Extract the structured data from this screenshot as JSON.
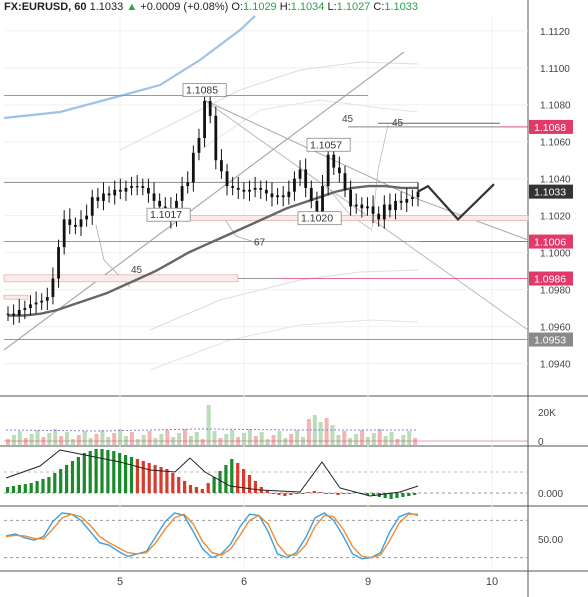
{
  "header": {
    "symbol": "FX:EURUSD, 60",
    "last": "1.1033",
    "change_arrow": "▲",
    "change": "+0.0009 (+0.08%)",
    "open_label": "O:",
    "open": "1.1029",
    "high_label": "H:",
    "high": "1.1034",
    "low_label": "L:",
    "low": "1.1027",
    "close_label": "C:",
    "close": "1.1033"
  },
  "colors": {
    "candle": "#111111",
    "ma": "#666666",
    "bollinger_upper_blue": "#9fc2e6",
    "envelope": "#d6d6d6",
    "trendline": "#aaaaaa",
    "level_line": "#888888",
    "red_badge": "#e0396a",
    "gray_badge": "#8a8a8a",
    "last_badge": "#333333",
    "volume_up": "#b9dcb9",
    "volume_down": "#f1b5b5",
    "macd_up": "#1a8a2a",
    "macd_down": "#d93a2b",
    "stoch_k": "#3aa0e0",
    "stoch_d": "#f08a30"
  },
  "chart_data": [
    {
      "type": "candlestick",
      "panel": "price",
      "y_axis_ticks": [
        "1.1120",
        "1.1100",
        "1.1080",
        "1.1060",
        "1.1040",
        "1.1020",
        "1.1000",
        "1.0980",
        "1.0960",
        "1.0940"
      ],
      "ylim": [
        1.0923,
        1.1128
      ],
      "x_axis_ticks": [
        "5",
        "6",
        "9",
        "10"
      ],
      "annotations": [
        "1.1085",
        "1.1057",
        "1.1017",
        "1.1020",
        "45",
        "45",
        "45",
        "67"
      ],
      "price_badges": [
        {
          "label": "1.1068",
          "value": 1.1068,
          "color": "red"
        },
        {
          "label": "1.1033",
          "value": 1.1033,
          "color": "dark"
        },
        {
          "label": "1.1006",
          "value": 1.1006,
          "color": "red"
        },
        {
          "label": "1.0986",
          "value": 1.0986,
          "color": "red"
        },
        {
          "label": "1.0953",
          "value": 1.0953,
          "color": "gray"
        }
      ],
      "closes": [
        1.0967,
        1.0966,
        1.0969,
        1.097,
        1.0972,
        1.0973,
        1.0974,
        1.0976,
        1.0986,
        1.1003,
        1.1018,
        1.1015,
        1.1014,
        1.1018,
        1.102,
        1.103,
        1.1028,
        1.1032,
        1.1031,
        1.1034,
        1.1033,
        1.1035,
        1.1036,
        1.1036,
        1.1035,
        1.1032,
        1.1028,
        1.1025,
        1.1024,
        1.1018,
        1.1028,
        1.1036,
        1.1038,
        1.1054,
        1.1062,
        1.1082,
        1.1074,
        1.105,
        1.1044,
        1.1036,
        1.1035,
        1.1034,
        1.1033,
        1.1034,
        1.1035,
        1.1034,
        1.1032,
        1.103,
        1.1031,
        1.103,
        1.1033,
        1.104,
        1.1045,
        1.1035,
        1.1028,
        1.102,
        1.1036,
        1.1053,
        1.1046,
        1.1043,
        1.1034,
        1.1025,
        1.1026,
        1.1024,
        1.1025,
        1.1021,
        1.1018,
        1.1026,
        1.1023,
        1.1028,
        1.1027,
        1.1029,
        1.103,
        1.1033
      ],
      "moving_average": [
        1.0966,
        1.0966,
        1.0967,
        1.0969,
        1.0972,
        1.0975,
        1.0978,
        1.0982,
        1.0986,
        1.099,
        1.0995,
        1.1,
        1.1004,
        1.1008,
        1.1012,
        1.1016,
        1.102,
        1.1024,
        1.1027,
        1.103,
        1.1033,
        1.1035,
        1.1036,
        1.1036,
        1.1035,
        1.1035
      ],
      "forecast_path": [
        1.1033,
        1.1036,
        1.1018,
        1.1037
      ]
    },
    {
      "type": "bar",
      "panel": "volume",
      "y_axis_ticks": [
        "20K",
        "0"
      ]
    },
    {
      "type": "histogram",
      "panel": "macd",
      "y_axis_ticks": [
        "0.000"
      ]
    },
    {
      "type": "line",
      "panel": "stochastic",
      "y_axis_ticks": [
        "50.00"
      ],
      "series": [
        {
          "values": [
            55,
            58,
            52,
            48,
            54,
            78,
            92,
            90,
            80,
            62,
            44,
            40,
            30,
            22,
            26,
            30,
            54,
            78,
            92,
            88,
            62,
            34,
            20,
            26,
            42,
            70,
            90,
            88,
            62,
            26,
            20,
            28,
            52,
            84,
            92,
            80,
            55,
            26,
            18,
            20,
            28,
            62,
            86,
            92,
            88
          ]
        },
        {
          "values": [
            54,
            56,
            55,
            51,
            50,
            66,
            84,
            90,
            86,
            72,
            54,
            44,
            36,
            28,
            26,
            28,
            44,
            66,
            84,
            90,
            74,
            46,
            28,
            24,
            34,
            56,
            80,
            88,
            74,
            42,
            24,
            24,
            40,
            70,
            88,
            86,
            66,
            38,
            22,
            20,
            24,
            48,
            76,
            90,
            90
          ]
        }
      ]
    }
  ]
}
